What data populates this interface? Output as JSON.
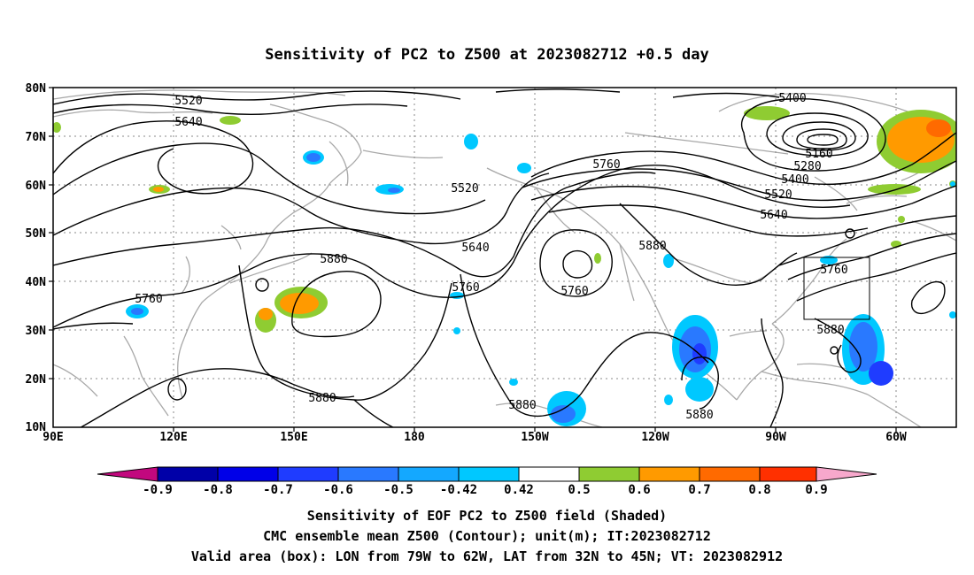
{
  "title": "Sensitivity of PC2 to Z500 at 2023082712 +0.5 day",
  "lat_ticks": [
    "80N",
    "70N",
    "60N",
    "50N",
    "40N",
    "30N",
    "20N",
    "10N"
  ],
  "lon_ticks": [
    "90E",
    "120E",
    "150E",
    "180",
    "150W",
    "120W",
    "90W",
    "60W"
  ],
  "contour_labels": [
    "5400",
    "5520",
    "5640",
    "5160",
    "5280",
    "5400",
    "5520",
    "5640",
    "5760",
    "5520",
    "5640",
    "5760",
    "5760",
    "5880",
    "5760",
    "5880",
    "5760",
    "5880",
    "5880",
    "5880",
    "5880"
  ],
  "colorbar": {
    "ticks": [
      "-0.9",
      "-0.8",
      "-0.7",
      "-0.6",
      "-0.5",
      "-0.42",
      "0.42",
      "0.5",
      "0.6",
      "0.7",
      "0.8",
      "0.9"
    ],
    "colors": [
      "#c2087e",
      "#0000a8",
      "#0000e8",
      "#1f3cff",
      "#2979ff",
      "#14a8ff",
      "#00c8ff",
      "#ffffff",
      "#8fcc32",
      "#ff9a00",
      "#ff6a00",
      "#ff3000",
      "#ff0000",
      "#f7a8cc"
    ]
  },
  "footer": [
    "Sensitivity of EOF PC2 to Z500 field (Shaded)",
    "CMC ensemble mean Z500 (Contour); unit(m); IT:2023082712",
    "Valid area (box): LON from 79W to 62W, LAT from 32N to 45N; VT: 2023082912"
  ],
  "map_extent": {
    "lon_min": 90,
    "lon_max": 315,
    "lat_min": 10,
    "lat_max": 80
  },
  "valid_box": {
    "lon_from": 281,
    "lon_to": 298,
    "lat_from": 32,
    "lat_to": 45
  }
}
